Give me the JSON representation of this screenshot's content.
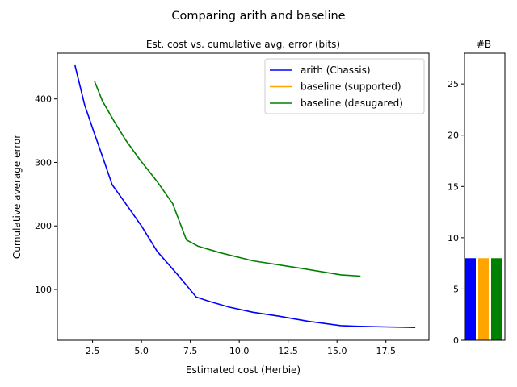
{
  "figure": {
    "suptitle": "Comparing arith and baseline"
  },
  "chart_data": [
    {
      "type": "line",
      "title": "Est. cost vs. cumulative avg. error (bits)",
      "xlabel": "Estimated cost (Herbie)",
      "ylabel": "Cumulative average error",
      "xlim": [
        0.7,
        19.7
      ],
      "ylim": [
        20,
        472
      ],
      "xticks": [
        "2.5",
        "5.0",
        "7.5",
        "10.0",
        "12.5",
        "15.0",
        "17.5"
      ],
      "xtick_values": [
        2.5,
        5.0,
        7.5,
        10.0,
        12.5,
        15.0,
        17.5
      ],
      "yticks": [
        "100",
        "200",
        "300",
        "400"
      ],
      "ytick_values": [
        100,
        200,
        300,
        400
      ],
      "grid": false,
      "legend_position": "top-right",
      "series": [
        {
          "name": "arith (Chassis)",
          "color": "#0000ff",
          "x": [
            1.6,
            2.1,
            2.6,
            3.0,
            3.5,
            4.2,
            5.0,
            5.8,
            6.8,
            7.8,
            8.5,
            9.5,
            10.7,
            12.0,
            13.5,
            15.2,
            16.0,
            17.5,
            19.0
          ],
          "y": [
            453,
            390,
            345,
            310,
            265,
            235,
            200,
            160,
            125,
            88,
            81,
            72,
            64,
            58,
            50,
            43,
            42,
            41,
            40
          ]
        },
        {
          "name": "baseline (supported)",
          "color": "#ffa500",
          "x": [],
          "y": []
        },
        {
          "name": "baseline (desugared)",
          "color": "#008000",
          "x": [
            2.6,
            3.0,
            3.6,
            4.2,
            4.9,
            5.8,
            6.6,
            7.3,
            7.9,
            9.0,
            10.7,
            12.8,
            15.2,
            16.2
          ],
          "y": [
            428,
            397,
            365,
            335,
            305,
            270,
            235,
            178,
            168,
            158,
            145,
            135,
            123,
            121
          ]
        }
      ]
    },
    {
      "type": "bar",
      "title": "#B",
      "ylim": [
        0,
        28
      ],
      "yticks": [
        "0",
        "5",
        "10",
        "15",
        "20",
        "25"
      ],
      "ytick_values": [
        0,
        5,
        10,
        15,
        20,
        25
      ],
      "values": [
        8,
        8,
        8
      ],
      "colors": [
        "#0000ff",
        "#ffa500",
        "#008000"
      ]
    }
  ]
}
